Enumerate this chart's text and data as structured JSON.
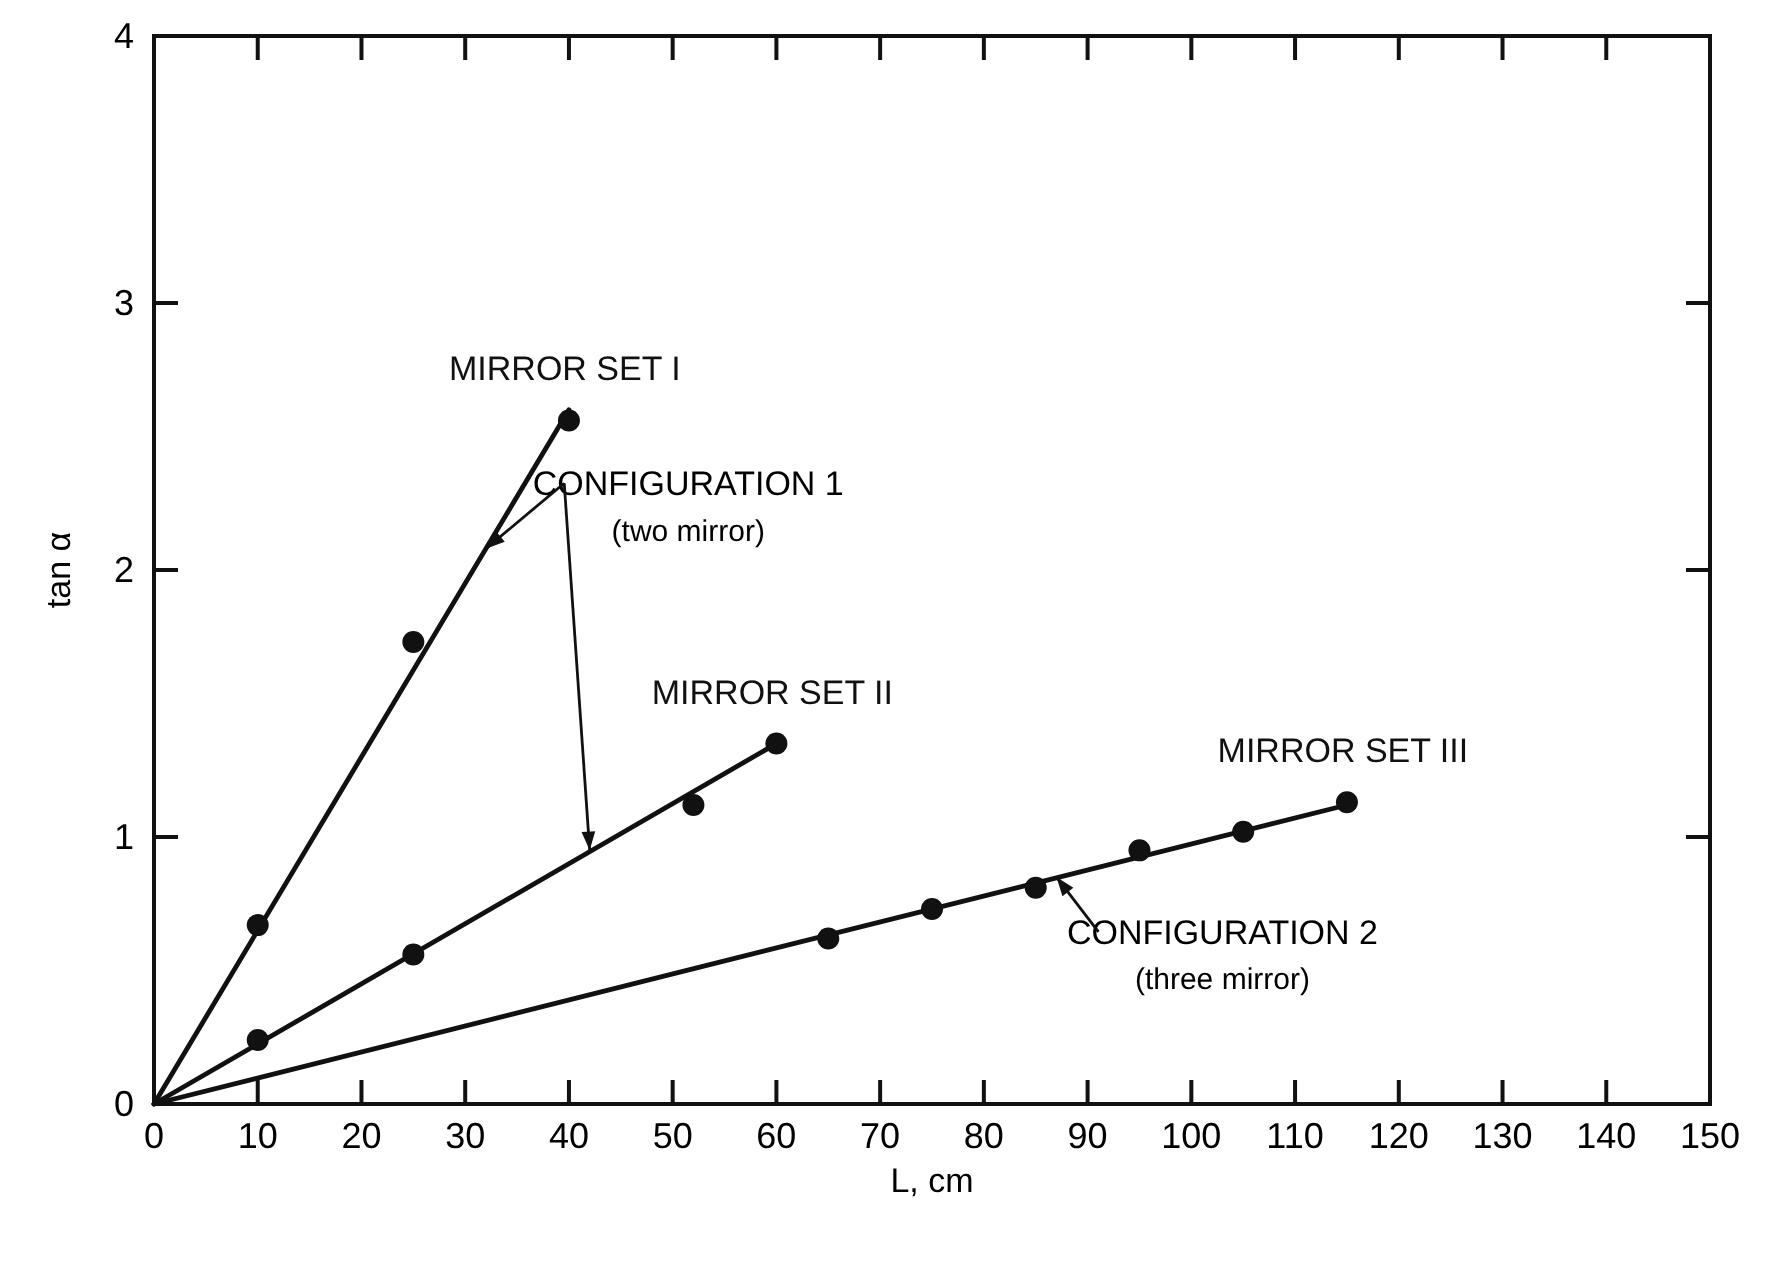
{
  "chart_data": {
    "type": "scatter",
    "xlabel": "L, cm",
    "ylabel": "tan α",
    "xlim": [
      0,
      150
    ],
    "ylim": [
      0,
      4
    ],
    "xticks": [
      0,
      10,
      20,
      30,
      40,
      50,
      60,
      70,
      80,
      90,
      100,
      110,
      120,
      130,
      140,
      150
    ],
    "yticks": [
      0,
      1,
      2,
      3,
      4
    ],
    "grid": false,
    "marker": "circle",
    "series": [
      {
        "type": "line",
        "color": "#111111",
        "x": [
          0,
          40
        ],
        "values": [
          0,
          2.6
        ],
        "marker": "none",
        "line_style": "solid"
      },
      {
        "type": "line",
        "color": "#111111",
        "x": [
          0,
          60
        ],
        "values": [
          0,
          1.35
        ],
        "marker": "none",
        "line_style": "solid"
      },
      {
        "type": "line",
        "color": "#111111",
        "x": [
          0,
          115
        ],
        "values": [
          0,
          1.12
        ],
        "marker": "none",
        "line_style": "solid"
      },
      {
        "name": "MIRROR SET I",
        "color": "#111111",
        "x": [
          10,
          25,
          40
        ],
        "values": [
          0.67,
          1.73,
          2.56
        ]
      },
      {
        "name": "MIRROR SET II",
        "color": "#111111",
        "x": [
          10,
          25,
          52,
          60
        ],
        "values": [
          0.24,
          0.56,
          1.12,
          1.35
        ]
      },
      {
        "name": "MIRROR SET III",
        "color": "#111111",
        "x": [
          65,
          75,
          85,
          95,
          105,
          115
        ],
        "values": [
          0.62,
          0.73,
          0.81,
          0.95,
          1.02,
          1.13
        ]
      }
    ],
    "annotations": [
      {
        "text": "CONFIGURATION 1",
        "x": 32,
        "y": 2.08
      },
      "(two mirror)",
      {
        "text": "CONFIGURATION 2",
        "x": 87,
        "y": 0.85
      },
      "(three mirror)"
    ]
  }
}
